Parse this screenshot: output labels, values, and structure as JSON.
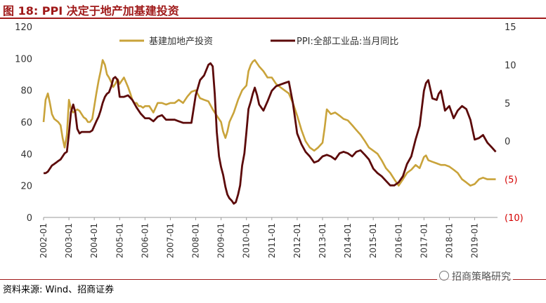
{
  "title": "图 18:  PPI 决定于地产加基建投资",
  "source": "资料来源: Wind、招商证券",
  "watermark": "招商策略研究",
  "chart_data": {
    "type": "line",
    "y_left": {
      "ticks": [
        0,
        20,
        40,
        60,
        80,
        100,
        120
      ],
      "tick_labels": [
        "0",
        "20",
        "40",
        "60",
        "80",
        "100",
        "120"
      ],
      "range": [
        0,
        120
      ]
    },
    "y_right": {
      "ticks": [
        -10,
        -5,
        0,
        5,
        10,
        15
      ],
      "tick_labels": [
        "(10)",
        "(5)",
        "0",
        "5",
        "10",
        "15"
      ],
      "range": [
        -10,
        15
      ]
    },
    "x_tick_labels": [
      "2002-01",
      "2003-01",
      "2004-01",
      "2005-01",
      "2006-01",
      "2007-01",
      "2008-01",
      "2009-01",
      "2010-01",
      "2011-01",
      "2012-01",
      "2013-01",
      "2014-01",
      "2015-01",
      "2016-01",
      "2017-01",
      "2018-01",
      "2019-01"
    ],
    "x_range": [
      2002.0,
      2019.9
    ],
    "colors": {
      "infra": "#c9a33a",
      "ppi": "#5c0a0a",
      "neg_ticks": "#d40000",
      "title": "#a01a1a"
    },
    "legend_position": "top",
    "series": [
      {
        "name": "基建加地产投资",
        "axis": "left",
        "x": [
          2002.0,
          2002.08,
          2002.17,
          2002.25,
          2002.33,
          2002.42,
          2002.5,
          2002.58,
          2002.67,
          2002.75,
          2002.83,
          2002.92,
          2003.0,
          2003.08,
          2003.17,
          2003.25,
          2003.33,
          2003.42,
          2003.5,
          2003.58,
          2003.67,
          2003.75,
          2003.83,
          2003.92,
          2004.0,
          2004.08,
          2004.17,
          2004.25,
          2004.33,
          2004.42,
          2004.5,
          2004.58,
          2004.67,
          2004.75,
          2004.83,
          2004.92,
          2005.0,
          2005.08,
          2005.17,
          2005.25,
          2005.33,
          2005.42,
          2005.5,
          2005.58,
          2005.67,
          2005.75,
          2005.83,
          2005.92,
          2006.0,
          2006.17,
          2006.33,
          2006.5,
          2006.67,
          2006.83,
          2007.0,
          2007.17,
          2007.33,
          2007.5,
          2007.67,
          2007.83,
          2008.0,
          2008.17,
          2008.33,
          2008.5,
          2008.67,
          2008.83,
          2009.0,
          2009.08,
          2009.17,
          2009.25,
          2009.33,
          2009.5,
          2009.67,
          2009.83,
          2010.0,
          2010.08,
          2010.17,
          2010.25,
          2010.33,
          2010.5,
          2010.67,
          2010.83,
          2011.0,
          2011.17,
          2011.33,
          2011.5,
          2011.67,
          2011.83,
          2012.0,
          2012.17,
          2012.33,
          2012.5,
          2012.67,
          2012.83,
          2013.0,
          2013.08,
          2013.17,
          2013.33,
          2013.5,
          2013.67,
          2013.83,
          2014.0,
          2014.17,
          2014.33,
          2014.5,
          2014.67,
          2014.83,
          2015.0,
          2015.17,
          2015.33,
          2015.5,
          2015.67,
          2015.83,
          2016.0,
          2016.17,
          2016.33,
          2016.5,
          2016.67,
          2016.83,
          2017.0,
          2017.08,
          2017.17,
          2017.33,
          2017.5,
          2017.67,
          2017.83,
          2018.0,
          2018.17,
          2018.33,
          2018.5,
          2018.67,
          2018.83,
          2019.0,
          2019.17,
          2019.33,
          2019.5,
          2019.67,
          2019.83
        ],
        "values": [
          60,
          74,
          78,
          72,
          65,
          62,
          61,
          60,
          58,
          50,
          44,
          52,
          74,
          68,
          66,
          67,
          68,
          67,
          65,
          63,
          62,
          60,
          60,
          62,
          70,
          78,
          86,
          92,
          99,
          96,
          90,
          88,
          85,
          82,
          84,
          87,
          84,
          86,
          88,
          85,
          82,
          78,
          74,
          72,
          72,
          70,
          70,
          69,
          70,
          70,
          66,
          72,
          72,
          71,
          72,
          72,
          74,
          72,
          76,
          79,
          80,
          75,
          74,
          73,
          68,
          64,
          60,
          54,
          50,
          54,
          60,
          66,
          74,
          80,
          83,
          92,
          96,
          98,
          99,
          95,
          92,
          88,
          88,
          84,
          82,
          80,
          78,
          72,
          64,
          55,
          48,
          44,
          42,
          44,
          47,
          56,
          68,
          65,
          66,
          64,
          62,
          61,
          58,
          55,
          52,
          48,
          44,
          42,
          40,
          36,
          31,
          28,
          24,
          20,
          24,
          28,
          30,
          33,
          31,
          38,
          39,
          36,
          35,
          34,
          33,
          33,
          32,
          30,
          28,
          24,
          22,
          20,
          21,
          24,
          25,
          24,
          24,
          24
        ]
      },
      {
        "name": "PPI:全部工业品:当月同比",
        "axis": "right",
        "x": [
          2002.0,
          2002.08,
          2002.17,
          2002.25,
          2002.33,
          2002.42,
          2002.5,
          2002.58,
          2002.67,
          2002.75,
          2002.83,
          2002.92,
          2003.0,
          2003.08,
          2003.17,
          2003.25,
          2003.33,
          2003.42,
          2003.5,
          2003.58,
          2003.67,
          2003.75,
          2003.83,
          2003.92,
          2004.0,
          2004.08,
          2004.17,
          2004.25,
          2004.33,
          2004.42,
          2004.5,
          2004.58,
          2004.67,
          2004.75,
          2004.83,
          2004.92,
          2005.0,
          2005.17,
          2005.33,
          2005.5,
          2005.67,
          2005.83,
          2006.0,
          2006.17,
          2006.33,
          2006.5,
          2006.67,
          2006.83,
          2007.0,
          2007.17,
          2007.33,
          2007.5,
          2007.67,
          2007.83,
          2008.0,
          2008.17,
          2008.33,
          2008.5,
          2008.58,
          2008.67,
          2008.75,
          2008.83,
          2008.92,
          2009.0,
          2009.08,
          2009.17,
          2009.25,
          2009.33,
          2009.42,
          2009.5,
          2009.58,
          2009.67,
          2009.75,
          2009.83,
          2009.92,
          2010.0,
          2010.08,
          2010.17,
          2010.25,
          2010.33,
          2010.42,
          2010.5,
          2010.67,
          2010.83,
          2011.0,
          2011.17,
          2011.33,
          2011.5,
          2011.67,
          2011.83,
          2012.0,
          2012.17,
          2012.33,
          2012.5,
          2012.67,
          2012.83,
          2013.0,
          2013.17,
          2013.33,
          2013.5,
          2013.67,
          2013.83,
          2014.0,
          2014.17,
          2014.33,
          2014.5,
          2014.67,
          2014.83,
          2015.0,
          2015.17,
          2015.33,
          2015.5,
          2015.67,
          2015.83,
          2016.0,
          2016.17,
          2016.33,
          2016.5,
          2016.67,
          2016.83,
          2017.0,
          2017.08,
          2017.17,
          2017.25,
          2017.33,
          2017.5,
          2017.58,
          2017.67,
          2017.83,
          2018.0,
          2018.17,
          2018.33,
          2018.5,
          2018.67,
          2018.83,
          2019.0,
          2019.17,
          2019.33,
          2019.5,
          2019.67,
          2019.83
        ],
        "values": [
          -4.2,
          -4.2,
          -4.0,
          -3.6,
          -3.2,
          -3.0,
          -2.8,
          -2.6,
          -2.4,
          -2.0,
          -1.6,
          -1.4,
          1.0,
          3.8,
          4.8,
          3.8,
          1.6,
          1.0,
          1.2,
          1.2,
          1.2,
          1.2,
          1.2,
          1.4,
          2.0,
          2.6,
          3.2,
          4.0,
          5.0,
          5.8,
          6.2,
          6.4,
          7.2,
          8.2,
          8.4,
          8.0,
          5.8,
          5.8,
          6.0,
          5.4,
          4.4,
          3.6,
          3.0,
          3.0,
          2.6,
          3.2,
          3.4,
          2.8,
          2.8,
          2.8,
          2.6,
          2.4,
          2.4,
          2.4,
          6.0,
          8.0,
          8.6,
          10.0,
          10.2,
          9.8,
          6.2,
          1.2,
          -2.0,
          -3.4,
          -4.4,
          -6.0,
          -7.0,
          -7.5,
          -7.8,
          -8.2,
          -8.0,
          -7.0,
          -5.8,
          -3.2,
          -1.6,
          1.2,
          4.2,
          5.2,
          6.2,
          7.0,
          6.0,
          4.8,
          4.0,
          5.2,
          6.6,
          7.2,
          7.4,
          7.6,
          7.8,
          5.0,
          1.0,
          -0.4,
          -1.4,
          -2.0,
          -2.8,
          -2.6,
          -2.0,
          -1.8,
          -2.0,
          -2.4,
          -1.6,
          -1.4,
          -1.6,
          -2.0,
          -1.4,
          -1.2,
          -1.8,
          -2.4,
          -3.6,
          -4.2,
          -4.6,
          -5.2,
          -5.8,
          -5.8,
          -5.4,
          -4.6,
          -3.0,
          -2.0,
          0.2,
          2.0,
          6.6,
          7.6,
          8.0,
          6.8,
          5.6,
          5.4,
          6.2,
          6.6,
          4.0,
          4.6,
          3.0,
          4.0,
          4.6,
          4.2,
          2.8,
          0.2,
          0.4,
          0.8,
          -0.2,
          -0.8,
          -1.4
        ]
      }
    ]
  }
}
